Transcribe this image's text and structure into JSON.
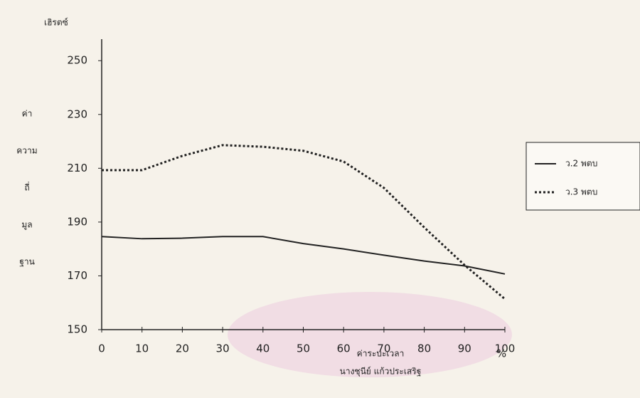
{
  "chart_data": {
    "type": "line",
    "y_unit": "เฮิรตซ์",
    "y_label_lines": [
      "ค่า",
      "ความ",
      "ถี่",
      "มูล",
      "ฐาน"
    ],
    "x_label": "ค่าระบะเวลา",
    "x_unit": "%",
    "credit": "นางชุนีย์ แก้วประเสริฐ",
    "x": [
      0,
      10,
      20,
      30,
      40,
      50,
      60,
      70,
      80,
      90,
      100
    ],
    "series": [
      {
        "name": "ว.2 พตบ",
        "color": "#222222",
        "dash": "solid",
        "values": [
          184.6,
          183.8,
          184,
          184.6,
          184.6,
          182,
          180,
          177.7,
          175.5,
          173.7,
          170.7
        ]
      },
      {
        "name": "ว.3 พตบ",
        "color": "#222222",
        "dash": "dotted",
        "values": [
          209.3,
          209.3,
          214.6,
          218.6,
          218,
          216.5,
          212.5,
          202.7,
          188,
          174,
          161.4
        ]
      }
    ],
    "xlim": [
      0,
      100
    ],
    "xticks": [
      0,
      10,
      20,
      30,
      40,
      50,
      60,
      70,
      80,
      90,
      100
    ],
    "ylim": [
      150,
      258
    ],
    "yticks": [
      150,
      170,
      190,
      210,
      230,
      250
    ],
    "legend": "right"
  }
}
